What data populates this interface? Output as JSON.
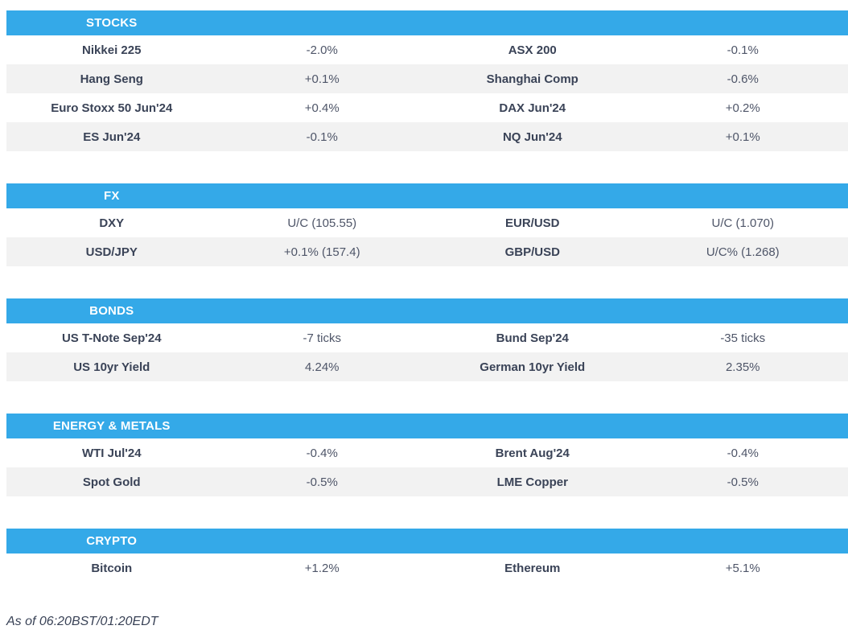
{
  "theme": {
    "accent_color": "#34a9e8",
    "header_text_color": "#ffffff",
    "row_alt_color": "#f2f2f2",
    "label_color": "#3a4357",
    "value_color": "#4e5568"
  },
  "sections": [
    {
      "title": "STOCKS",
      "rows": [
        {
          "l_label": "Nikkei 225",
          "l_value": "-2.0%",
          "r_label": "ASX 200",
          "r_value": "-0.1%"
        },
        {
          "l_label": "Hang Seng",
          "l_value": "+0.1%",
          "r_label": "Shanghai Comp",
          "r_value": "-0.6%"
        },
        {
          "l_label": "Euro Stoxx 50 Jun'24",
          "l_value": "+0.4%",
          "r_label": "DAX Jun'24",
          "r_value": "+0.2%"
        },
        {
          "l_label": "ES Jun'24",
          "l_value": "-0.1%",
          "r_label": "NQ Jun'24",
          "r_value": "+0.1%"
        }
      ]
    },
    {
      "title": "FX",
      "rows": [
        {
          "l_label": "DXY",
          "l_value": "U/C (105.55)",
          "r_label": "EUR/USD",
          "r_value": "U/C (1.070)"
        },
        {
          "l_label": "USD/JPY",
          "l_value": "+0.1% (157.4)",
          "r_label": "GBP/USD",
          "r_value": "U/C% (1.268)"
        }
      ]
    },
    {
      "title": "BONDS",
      "rows": [
        {
          "l_label": "US T-Note Sep'24",
          "l_value": "-7 ticks",
          "r_label": "Bund Sep'24",
          "r_value": "-35 ticks"
        },
        {
          "l_label": "US 10yr Yield",
          "l_value": "4.24%",
          "r_label": "German 10yr Yield",
          "r_value": "2.35%"
        }
      ]
    },
    {
      "title": "ENERGY & METALS",
      "rows": [
        {
          "l_label": "WTI Jul'24",
          "l_value": "-0.4%",
          "r_label": "Brent Aug'24",
          "r_value": "-0.4%"
        },
        {
          "l_label": "Spot Gold",
          "l_value": "-0.5%",
          "r_label": "LME Copper",
          "r_value": "-0.5%"
        }
      ]
    },
    {
      "title": "CRYPTO",
      "rows": [
        {
          "l_label": "Bitcoin",
          "l_value": "+1.2%",
          "r_label": "Ethereum",
          "r_value": "+5.1%"
        }
      ]
    }
  ],
  "footer": {
    "as_of": "As of 06:20BST/01:20EDT"
  }
}
